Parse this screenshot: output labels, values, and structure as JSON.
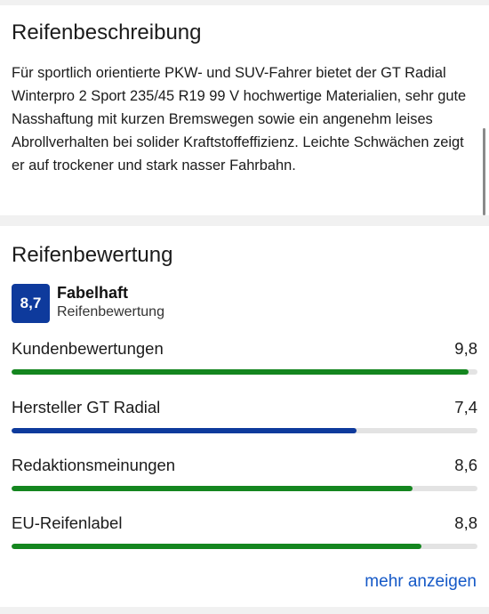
{
  "description": {
    "title": "Reifenbeschreibung",
    "text": "Für sportlich orientierte PKW- und SUV-Fahrer bietet der GT Radial Winterpro 2 Sport 235/45 R19 99 V hochwertige Materialien, sehr gute Nasshaftung mit kurzen Bremswegen sowie ein angenehm leises Abrollverhalten bei solider Kraftstoffeffizienz. Leichte Schwächen zeigt er auf trockener und stark nasser Fahrbahn."
  },
  "rating": {
    "title": "Reifenbewertung",
    "score": "8,7",
    "verdict": "Fabelhaft",
    "caption": "Reifenbewertung",
    "score_color": "#0e3a9c",
    "metrics": [
      {
        "label": "Kundenbewertungen",
        "value": "9,8",
        "fraction": 0.98,
        "color": "#14861f"
      },
      {
        "label": "Hersteller GT Radial",
        "value": "7,4",
        "fraction": 0.74,
        "color": "#0e3a9c"
      },
      {
        "label": "Redaktionsmeinungen",
        "value": "8,6",
        "fraction": 0.86,
        "color": "#14861f"
      },
      {
        "label": "EU-Reifenlabel",
        "value": "8,8",
        "fraction": 0.88,
        "color": "#14861f"
      }
    ],
    "more_label": "mehr anzeigen",
    "link_color": "#1559c7"
  }
}
